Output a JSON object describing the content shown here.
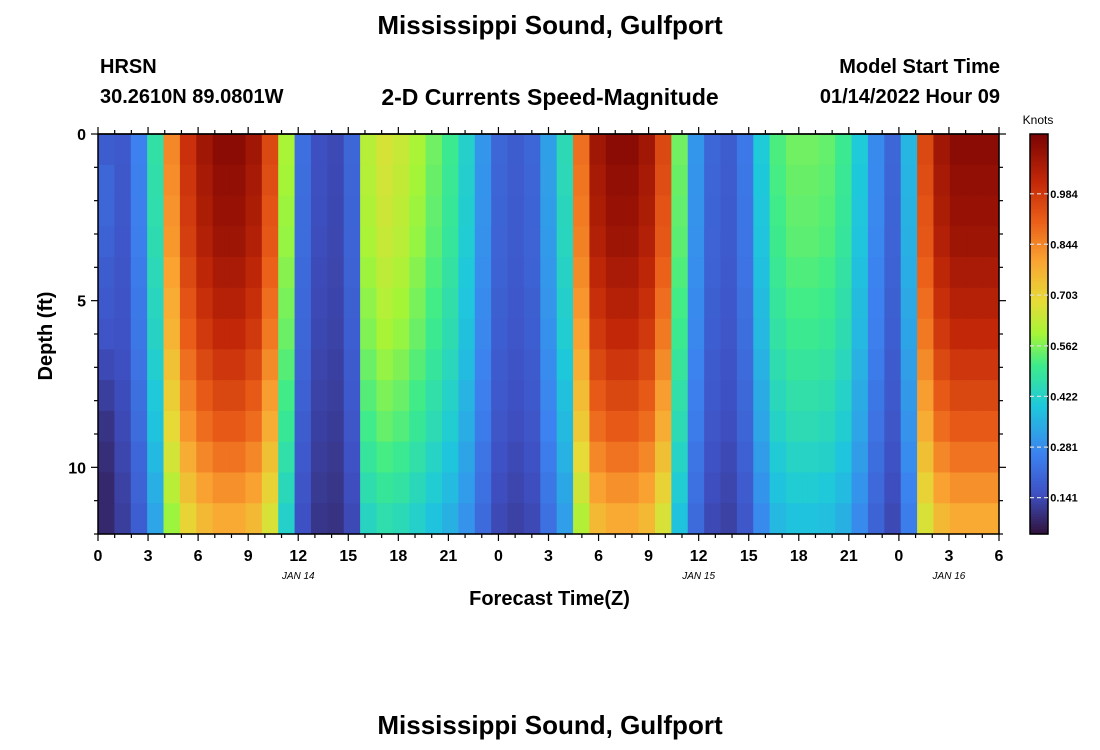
{
  "header": {
    "title": "Mississippi Sound, Gulfport",
    "station": "HRSN",
    "coords": "30.2610N  89.0801W",
    "subtitle": "2-D Currents Speed-Magnitude",
    "model_start_label": "Model Start Time",
    "model_start_value": "01/14/2022 Hour 09",
    "repeat_title": "Mississippi Sound, Gulfport"
  },
  "chart_data": {
    "type": "heatmap",
    "ylabel": "Depth (ft)",
    "xlabel": "Forecast Time(Z)",
    "colorbar_label": "Knots",
    "x_range_hours": [
      0,
      54
    ],
    "x_ticks": [
      "0",
      "3",
      "6",
      "9",
      "12",
      "15",
      "18",
      "21",
      "0",
      "3",
      "6",
      "9",
      "12",
      "15",
      "18",
      "21",
      "0",
      "3",
      "6"
    ],
    "date_labels": [
      {
        "label": "JAN 14",
        "hour": 12
      },
      {
        "label": "JAN 15",
        "hour": 36
      },
      {
        "label": "JAN 16",
        "hour": 51
      }
    ],
    "y_range_ft": [
      0,
      12
    ],
    "y_ticks": [
      "0",
      "5",
      "10"
    ],
    "colorbar_ticks": [
      "0.984",
      "0.844",
      "0.703",
      "0.562",
      "0.422",
      "0.281",
      "0.141"
    ],
    "colorbar_range_knots": [
      0.04,
      1.15
    ],
    "surface_speed_knots": [
      0.14,
      0.17,
      0.26,
      0.47,
      0.84,
      1.0,
      1.08,
      1.12,
      1.12,
      1.08,
      0.95,
      0.6,
      0.22,
      0.15,
      0.14,
      0.2,
      0.62,
      0.66,
      0.64,
      0.6,
      0.55,
      0.5,
      0.42,
      0.3,
      0.2,
      0.18,
      0.2,
      0.32,
      0.45,
      0.88,
      1.08,
      1.12,
      1.12,
      1.08,
      0.95,
      0.55,
      0.3,
      0.2,
      0.18,
      0.24,
      0.4,
      0.52,
      0.55,
      0.55,
      0.54,
      0.5,
      0.4,
      0.28,
      0.2,
      0.36,
      0.95,
      1.08,
      1.12,
      1.12,
      1.12
    ],
    "depth_attenuation": [
      1.0,
      0.99,
      0.98,
      0.97,
      0.95,
      0.93,
      0.91,
      0.88,
      0.85,
      0.82,
      0.78,
      0.74,
      0.7
    ],
    "left_edge_profile_knots": [
      0.18,
      0.2,
      0.2,
      0.19,
      0.18,
      0.17,
      0.16,
      0.14,
      0.12,
      0.1,
      0.09,
      0.08,
      0.08
    ]
  }
}
